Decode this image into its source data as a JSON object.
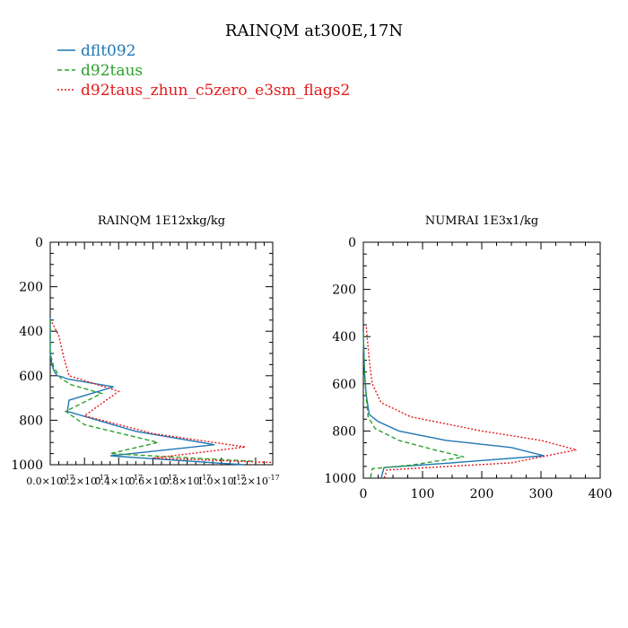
{
  "figure": {
    "title": "RAINQM at300E,17N",
    "legend": [
      {
        "label": "dflt092",
        "color": "#1f77b4",
        "dash": "solid"
      },
      {
        "label": "d92taus",
        "color": "#2ca02c",
        "dash": "dashed"
      },
      {
        "label": "d92taus_zhun_c5zero_e3sm_flags2",
        "color": "#e31a1c",
        "dash": "dotted"
      }
    ]
  },
  "chart_data": [
    {
      "type": "line",
      "title": "RAINQM  1E12xkg/kg",
      "xlabel": "",
      "ylabel": "",
      "xlim": [
        0,
        1.3e-17
      ],
      "ylim": [
        1000,
        0
      ],
      "x_ticks": [
        0,
        2e-18,
        4e-18,
        6e-18,
        8e-18,
        1e-17,
        1.2e-17
      ],
      "x_tick_labels": [
        "0.0×10",
        "0.2×10",
        "0.4×10",
        "0.6×10",
        "0.8×10",
        "1.0×10",
        "1.2×10"
      ],
      "x_tick_exponent": "-17",
      "y_ticks": [
        0,
        200,
        400,
        600,
        800,
        1000
      ],
      "y_tick_labels": [
        "0",
        "200",
        "400",
        "600",
        "800",
        "1000"
      ],
      "series": [
        {
          "name": "dflt092",
          "x": [
            0,
            0,
            1e-19,
            2e-19,
            4e-19,
            7e-19,
            1e-18,
            3.7e-18,
            1.1e-18,
            1e-18,
            5e-18,
            9.6e-18,
            3.5e-18,
            1.13e-17
          ],
          "y": [
            340,
            500,
            550,
            575,
            600,
            605,
            615,
            650,
            710,
            760,
            850,
            910,
            960,
            1000
          ]
        },
        {
          "name": "d92taus",
          "x": [
            0,
            0,
            2e-19,
            6e-19,
            1.2e-18,
            3e-18,
            9e-19,
            2e-18,
            6.3e-18,
            3.5e-18,
            1.2e-17
          ],
          "y": [
            350,
            500,
            560,
            610,
            640,
            680,
            760,
            820,
            900,
            950,
            985
          ]
        },
        {
          "name": "d92taus_zhun_c5zero_e3sm_flags2",
          "x": [
            1e-19,
            5e-19,
            8e-19,
            1.1e-18,
            4e-18,
            2e-18,
            6e-18,
            1.14e-17,
            6e-18,
            1.3e-17
          ],
          "y": [
            360,
            420,
            520,
            600,
            670,
            780,
            860,
            920,
            970,
            990
          ]
        }
      ]
    },
    {
      "type": "line",
      "title": "NUMRAI  1E3x1/kg",
      "xlabel": "",
      "ylabel": "",
      "xlim": [
        0,
        400
      ],
      "ylim": [
        1000,
        0
      ],
      "x_ticks": [
        0,
        100,
        200,
        300,
        400
      ],
      "x_tick_labels": [
        "0",
        "100",
        "200",
        "300",
        "400"
      ],
      "y_ticks": [
        0,
        200,
        400,
        600,
        800,
        1000
      ],
      "y_tick_labels": [
        "0",
        "200",
        "400",
        "600",
        "800",
        "1000"
      ],
      "series": [
        {
          "name": "dflt092",
          "x": [
            0,
            2,
            5,
            10,
            25,
            60,
            140,
            250,
            305,
            150,
            35,
            30
          ],
          "y": [
            380,
            550,
            650,
            730,
            760,
            800,
            840,
            870,
            905,
            935,
            955,
            1000
          ]
        },
        {
          "name": "d92taus",
          "x": [
            0,
            2,
            5,
            8,
            20,
            60,
            120,
            170,
            80,
            15,
            12
          ],
          "y": [
            390,
            560,
            660,
            740,
            790,
            840,
            880,
            910,
            945,
            960,
            1000
          ]
        },
        {
          "name": "d92taus_zhun_c5zero_e3sm_flags2",
          "x": [
            5,
            10,
            15,
            30,
            80,
            200,
            300,
            360,
            250,
            40,
            35
          ],
          "y": [
            360,
            500,
            600,
            680,
            740,
            800,
            840,
            880,
            935,
            965,
            1000
          ]
        }
      ]
    }
  ]
}
